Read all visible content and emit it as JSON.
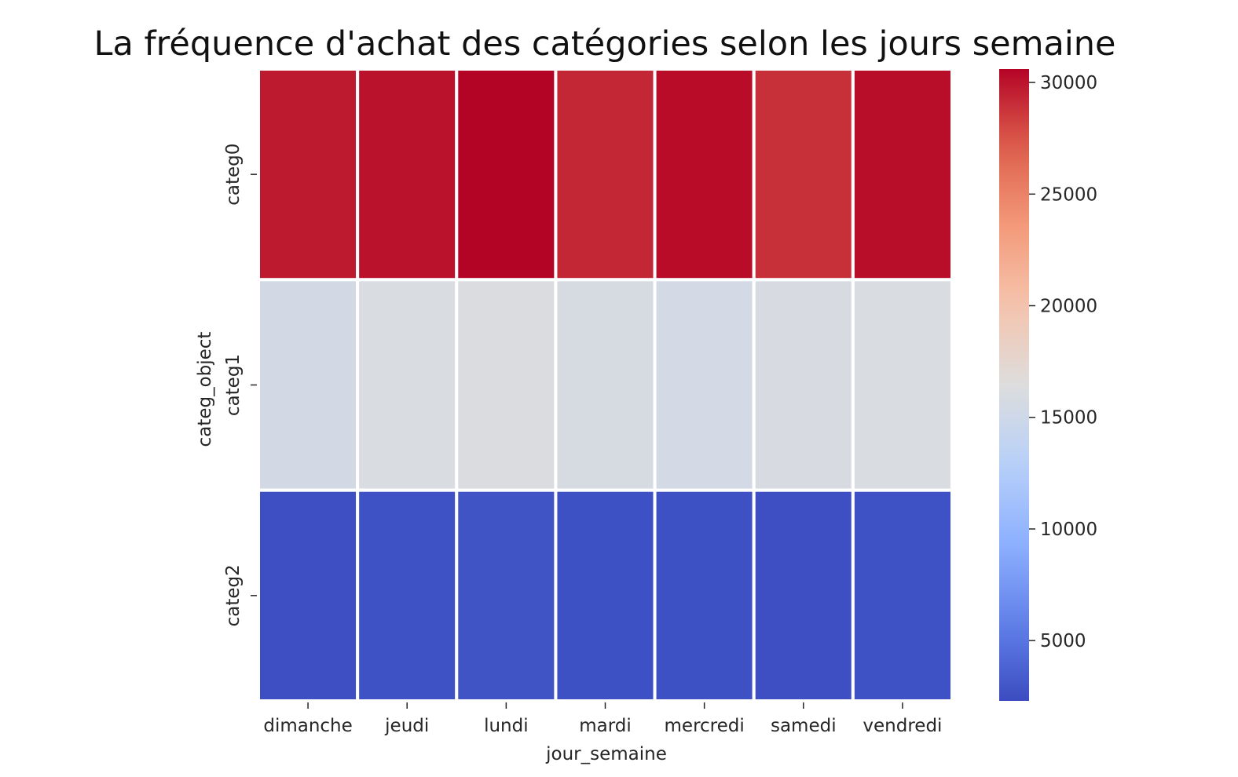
{
  "chart_data": {
    "type": "heatmap",
    "title": "La fréquence d'achat des catégories selon les jours semaine",
    "xlabel": "jour_semaine",
    "ylabel": "categ_object",
    "x_categories": [
      "dimanche",
      "jeudi",
      "lundi",
      "mardi",
      "mercredi",
      "samedi",
      "vendredi"
    ],
    "y_categories": [
      "categ0",
      "categ1",
      "categ2"
    ],
    "values": [
      [
        29800,
        30100,
        30600,
        29300,
        30300,
        28900,
        30200
      ],
      [
        15400,
        16100,
        16200,
        15800,
        15500,
        15900,
        16100
      ],
      [
        2500,
        2700,
        2800,
        2600,
        2600,
        2500,
        2700
      ]
    ],
    "colormap": "coolwarm",
    "vmin": 2300,
    "vmax": 30600,
    "colorbar_ticks": [
      5000,
      10000,
      15000,
      20000,
      25000,
      30000
    ],
    "colorbar_tick_labels": [
      "5000",
      "10000",
      "15000",
      "20000",
      "25000",
      "30000"
    ],
    "cell_gap_color": "#ffffff",
    "colorbar": "right"
  }
}
